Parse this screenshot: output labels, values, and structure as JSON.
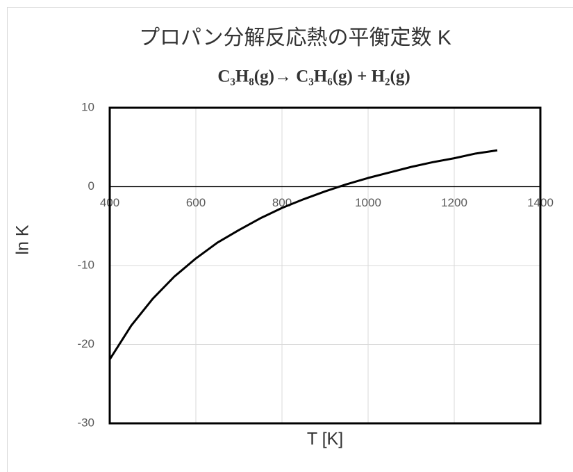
{
  "chart_data": {
    "type": "line",
    "title": "プロパン分解反応熱の平衡定数 K",
    "subtitle": "C₃H₈(g)→  C₃H₆(g) + H₂(g)",
    "x_label": "T [K]",
    "y_label": "ln K",
    "x": [
      400,
      450,
      500,
      550,
      600,
      650,
      700,
      750,
      800,
      850,
      900,
      950,
      1000,
      1050,
      1100,
      1150,
      1200,
      1250,
      1300
    ],
    "series": [
      {
        "name": "ln K",
        "color": "#000000",
        "values": [
          -21.9,
          -17.6,
          -14.2,
          -11.4,
          -9.1,
          -7.1,
          -5.5,
          -4.0,
          -2.7,
          -1.6,
          -0.6,
          0.3,
          1.1,
          1.8,
          2.5,
          3.1,
          3.6,
          4.2,
          4.6
        ]
      }
    ],
    "xlim": [
      400,
      1400
    ],
    "xticks": [
      400,
      600,
      800,
      1000,
      1200,
      1400
    ],
    "ylim": [
      -30,
      10
    ],
    "yticks": [
      -30,
      -20,
      -10,
      0,
      10
    ],
    "x_axis_crosses": 0,
    "grid": true
  }
}
